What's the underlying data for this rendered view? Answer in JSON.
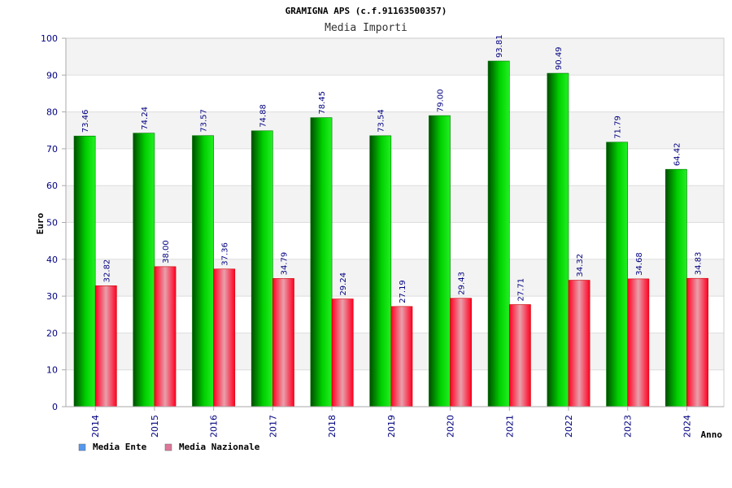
{
  "chart_data": {
    "type": "bar",
    "title": "GRAMIGNA APS (c.f.91163500357)",
    "subtitle": "Media Importi",
    "xlabel": "Anno",
    "ylabel": "Euro",
    "ylim": [
      0,
      100
    ],
    "yticks": [
      0,
      10,
      20,
      30,
      40,
      50,
      60,
      70,
      80,
      90,
      100
    ],
    "grid": true,
    "legend_position": "bottom-left",
    "categories": [
      "2014",
      "2015",
      "2016",
      "2017",
      "2018",
      "2019",
      "2020",
      "2021",
      "2022",
      "2023",
      "2024"
    ],
    "series": [
      {
        "name": "Media Ente",
        "color": "#00bb00",
        "legend_color": "#5599ee",
        "values": [
          73.46,
          74.24,
          73.57,
          74.88,
          78.45,
          73.54,
          79.0,
          93.81,
          90.49,
          71.79,
          64.42
        ],
        "labels": [
          "73.46",
          "74.24",
          "73.57",
          "74.88",
          "78.45",
          "73.54",
          "79.00",
          "93.81",
          "90.49",
          "71.79",
          "64.42"
        ]
      },
      {
        "name": "Media Nazionale",
        "color": "#ee1133",
        "legend_color": "#dd7799",
        "values": [
          32.82,
          38.0,
          37.36,
          34.79,
          29.24,
          27.19,
          29.43,
          27.71,
          34.32,
          34.68,
          34.83
        ],
        "labels": [
          "32.82",
          "38.00",
          "37.36",
          "34.79",
          "29.24",
          "27.19",
          "29.43",
          "27.71",
          "34.32",
          "34.68",
          "34.83"
        ]
      }
    ]
  }
}
